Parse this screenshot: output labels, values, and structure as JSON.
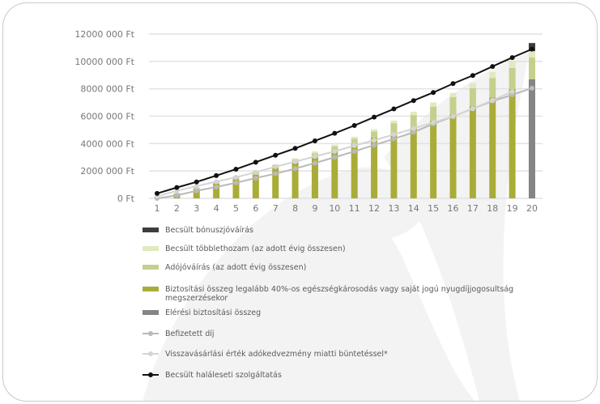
{
  "chart_data": {
    "type": "bar",
    "stacked": true,
    "categories": [
      "1",
      "2",
      "3",
      "4",
      "5",
      "6",
      "7",
      "8",
      "9",
      "10",
      "11",
      "12",
      "13",
      "14",
      "15",
      "16",
      "17",
      "18",
      "19",
      "20"
    ],
    "ylim": [
      0,
      12000000
    ],
    "yticks": [
      0,
      2000000,
      4000000,
      6000000,
      8000000,
      10000000,
      12000000
    ],
    "ytick_labels": [
      "0 Ft",
      "2000 000 Ft",
      "4000 000 Ft",
      "6000 000 Ft",
      "8000 000 Ft",
      "10000 000 Ft",
      "12000 000 Ft"
    ],
    "grid": true,
    "legend_position": "bottom",
    "bar_series": [
      {
        "name": "Biztosítási összeg legalább 40%-os egészségkárosodás vagy saját jogú nyugdíjjogosultság megszerzésekor",
        "color": "#a9ad38",
        "values": [
          50000,
          300000,
          650000,
          1080000,
          1400000,
          1730000,
          2230000,
          2620000,
          3020000,
          3510000,
          3950000,
          4440000,
          4600000,
          5130000,
          5680000,
          6140000,
          6730000,
          7360000,
          7990000,
          0
        ]
      },
      {
        "name": "Elérési biztosítási összeg",
        "color": "#858585",
        "values": [
          0,
          0,
          0,
          0,
          0,
          0,
          0,
          0,
          0,
          0,
          0,
          0,
          0,
          0,
          0,
          0,
          0,
          0,
          0,
          8700000
        ]
      },
      {
        "name": "Adójóváírás (az adott évig összesen)",
        "color": "#c6cf8c",
        "values": [
          20000,
          80000,
          120000,
          120000,
          180000,
          260000,
          200000,
          240000,
          280000,
          290000,
          410000,
          450000,
          890000,
          950000,
          1020000,
          1260000,
          1320000,
          1420000,
          1540000,
          1580000
        ]
      },
      {
        "name": "Becsült többlethozam (az adott évig összesen)",
        "color": "#e0eabf",
        "values": [
          0,
          10000,
          20000,
          30000,
          30000,
          40000,
          50000,
          60000,
          130000,
          120000,
          140000,
          160000,
          190000,
          250000,
          300000,
          290000,
          370000,
          450000,
          490000,
          470000
        ]
      },
      {
        "name": "Becsült bónuszjóváírás",
        "color": "#3d3d3d",
        "values": [
          0,
          0,
          0,
          0,
          0,
          0,
          0,
          0,
          0,
          0,
          0,
          0,
          0,
          0,
          0,
          0,
          0,
          0,
          0,
          590000
        ]
      }
    ],
    "line_series": [
      {
        "name": "Befizetett díj",
        "color": "#b9b9b9",
        "values": [
          0,
          220000,
          550000,
          830000,
          1140000,
          1480000,
          1800000,
          2170000,
          2580000,
          3000000,
          3430000,
          3890000,
          4340000,
          4830000,
          5440000,
          5980000,
          6550000,
          7100000,
          7560000,
          8050000
        ]
      },
      {
        "name": "Visszavásárlási érték adókedvezmény miatti büntetéssel*",
        "color": "#d4d4d4",
        "values": [
          150000,
          550000,
          890000,
          1220000,
          1540000,
          1910000,
          2310000,
          2680000,
          3060000,
          3430000,
          3850000,
          4240000,
          4660000,
          5100000,
          5540000,
          5980000,
          6550000,
          7160000,
          7800000,
          null
        ]
      },
      {
        "name": "Becsült haláleseti szolgáltatás",
        "color": "#111111",
        "values": [
          360000,
          790000,
          1200000,
          1660000,
          2130000,
          2640000,
          3150000,
          3650000,
          4200000,
          4750000,
          5320000,
          5930000,
          6530000,
          7140000,
          7730000,
          8380000,
          8970000,
          9630000,
          10280000,
          10900000
        ]
      }
    ]
  },
  "legend": [
    {
      "label": "Becsült bónuszjóváírás",
      "kind": "bar",
      "color": "#3d3d3d"
    },
    {
      "label": "Becsült többlethozam (az adott évig összesen)",
      "kind": "bar",
      "color": "#e0eabf"
    },
    {
      "label": "Adójóváírás (az adott évig összesen)",
      "kind": "bar",
      "color": "#c6cf8c"
    },
    {
      "label": "Biztosítási összeg legalább 40%-os egészségkárosodás vagy saját jogú nyugdíjjogosultság megszerzésekor",
      "kind": "bar",
      "color": "#a9ad38"
    },
    {
      "label": "Elérési biztosítási összeg",
      "kind": "bar",
      "color": "#858585"
    },
    {
      "label": "Befizetett díj",
      "kind": "line",
      "color": "#b9b9b9"
    },
    {
      "label": "Visszavásárlási érték adókedvezmény miatti büntetéssel*",
      "kind": "line",
      "color": "#d4d4d4"
    },
    {
      "label": "Becsült haláleseti szolgáltatás",
      "kind": "line",
      "color": "#111111"
    }
  ]
}
